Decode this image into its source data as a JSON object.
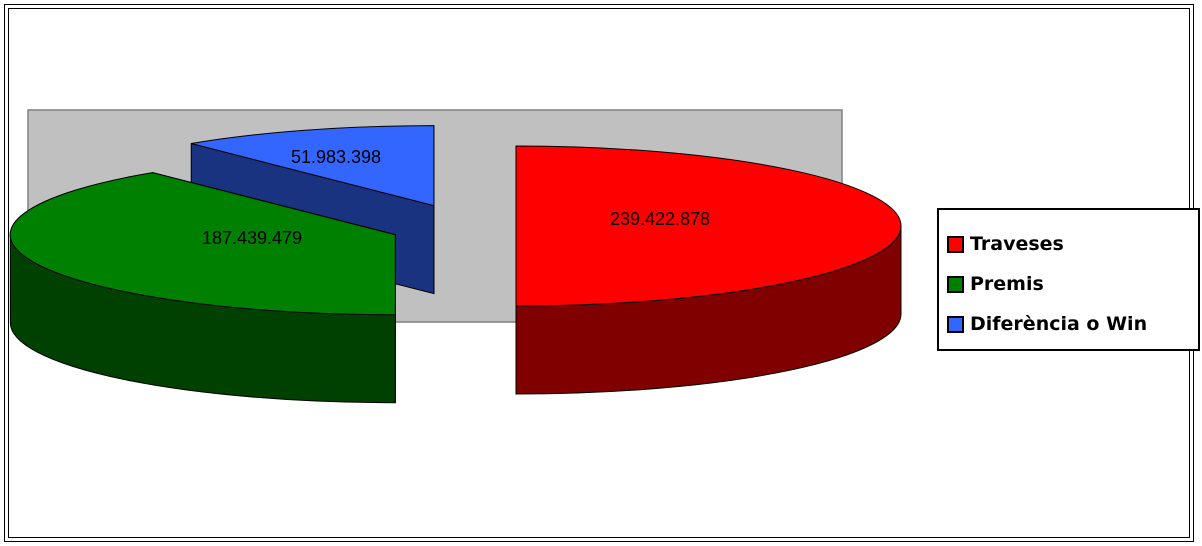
{
  "chart_data": {
    "type": "pie",
    "title": "",
    "three_d": true,
    "exploded": true,
    "plot_background": "#c0c0c0",
    "legend_position": "right",
    "slices": [
      {
        "label": "Traveses",
        "value": 239422878,
        "data_label": "239.422.878",
        "color": "#ff0000",
        "side_color": "#800000"
      },
      {
        "label": "Premis",
        "value": 187439479,
        "data_label": "187.439.479",
        "color": "#008000",
        "side_color": "#004000"
      },
      {
        "label": "Diferència o Win",
        "value": 51983398,
        "data_label": "51.983.398",
        "color": "#3366ff",
        "side_color": "#1a3380"
      }
    ]
  },
  "legend": {
    "items": [
      {
        "label": "Traveses",
        "color": "#ff0000"
      },
      {
        "label": "Premis",
        "color": "#008000"
      },
      {
        "label": "Diferència o Win",
        "color": "#3366ff"
      }
    ]
  }
}
